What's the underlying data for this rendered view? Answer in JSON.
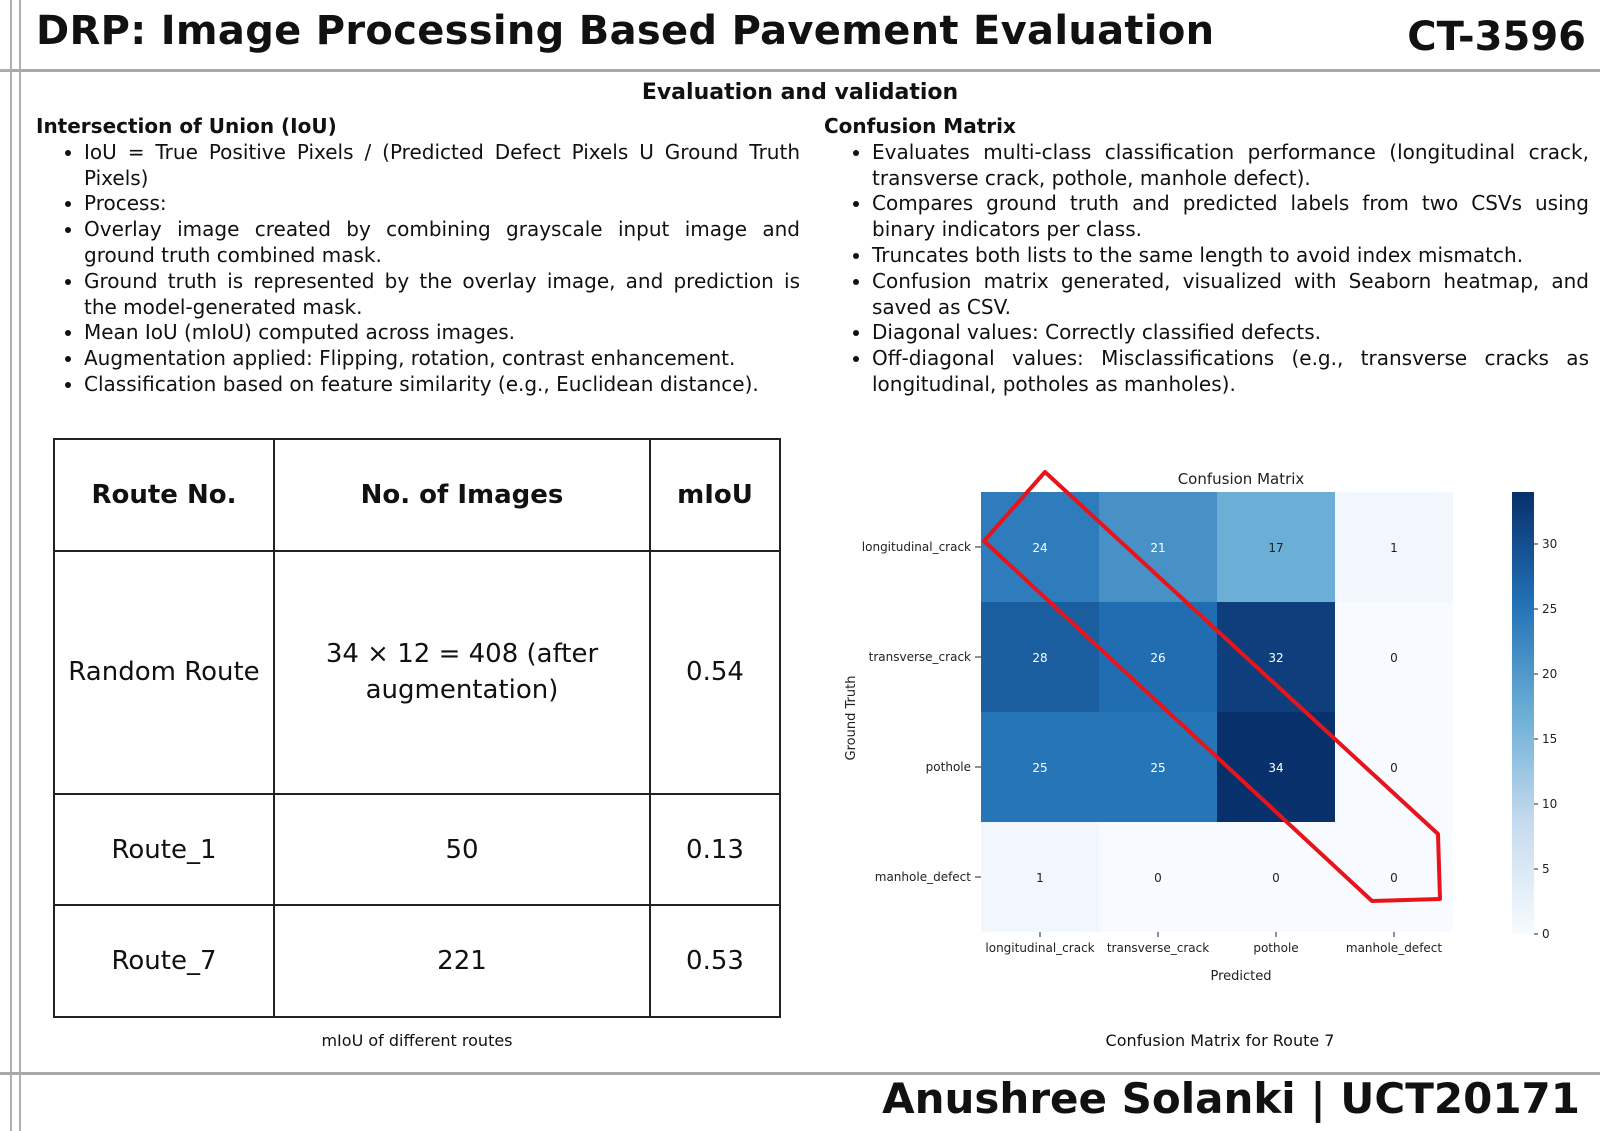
{
  "header": {
    "title": "DRP: Image Processing Based Pavement Evaluation",
    "code": "CT-3596"
  },
  "section": {
    "title": "Evaluation and validation"
  },
  "left": {
    "heading": "Intersection of Union (IoU)",
    "bullets": [
      "IoU = True Positive Pixels / (Predicted Defect Pixels U Ground Truth Pixels)",
      "Process:",
      "Overlay image created by combining grayscale input image and ground truth combined mask.",
      "Ground truth is represented by the overlay image, and prediction is the model-generated mask.",
      "Mean IoU (mIoU) computed across images.",
      "Augmentation applied: Flipping, rotation, contrast enhancement.",
      "Classification based on feature similarity (e.g., Euclidean distance)."
    ]
  },
  "right": {
    "heading": "Confusion Matrix",
    "bullets": [
      "Evaluates multi-class classification performance (longitudinal crack, transverse crack, pothole, manhole defect).",
      "Compares ground truth and predicted labels from two CSVs using binary indicators per class.",
      "Truncates both lists to the same length to avoid index mismatch.",
      "Confusion matrix generated, visualized with Seaborn heatmap, and saved as CSV.",
      "Diagonal values: Correctly classified defects.",
      "Off-diagonal values: Misclassifications (e.g., transverse cracks as longitudinal, potholes as manholes)."
    ]
  },
  "table": {
    "headers": [
      "Route No.",
      "No. of Images",
      "mIoU"
    ],
    "rows": [
      [
        "Random Route",
        "34 × 12 = 408 (after augmentation)",
        "0.54"
      ],
      [
        "Route_1",
        "50",
        "0.13"
      ],
      [
        "Route_7",
        "221",
        "0.53"
      ]
    ],
    "caption": "mIoU of different routes"
  },
  "chart_data": {
    "type": "heatmap",
    "title": "Confusion Matrix",
    "xlabel": "Predicted",
    "ylabel": "Ground Truth",
    "x_categories": [
      "longitudinal_crack",
      "transverse_crack",
      "pothole",
      "manhole_defect"
    ],
    "y_categories": [
      "longitudinal_crack",
      "transverse_crack",
      "pothole",
      "manhole_defect"
    ],
    "values": [
      [
        24,
        21,
        17,
        1
      ],
      [
        28,
        26,
        32,
        0
      ],
      [
        25,
        25,
        34,
        0
      ],
      [
        1,
        0,
        0,
        0
      ]
    ],
    "colormap": "Blues",
    "colorbar_ticks": [
      0,
      5,
      10,
      15,
      20,
      25,
      30
    ],
    "colorbar_range": [
      0,
      34
    ],
    "highlight_color": "#e8141b",
    "caption": "Confusion Matrix for Route 7"
  },
  "footer": {
    "author": "Anushree Solanki | UCT20171"
  }
}
